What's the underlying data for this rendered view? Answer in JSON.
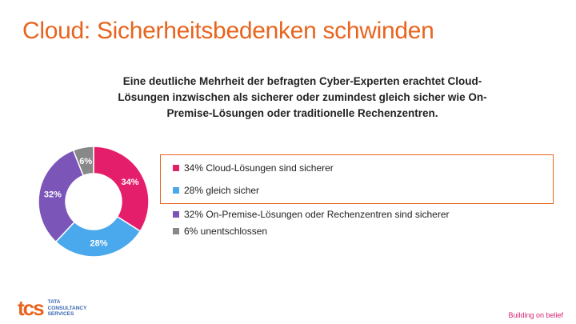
{
  "title": "Cloud: Sicherheitsbedenken schwinden",
  "subtitle": "Eine deutliche Mehrheit der befragten Cyber-Experten erachtet Cloud-Lösungen inzwischen als sicherer oder zumindest gleich sicher wie On-Premise-Lösungen oder traditionelle Rechenzentren.",
  "legend": [
    {
      "label": "34% Cloud-Lösungen sind sicherer",
      "color": "#e41e6a"
    },
    {
      "label": "28% gleich sicher",
      "color": "#4aa8ec"
    },
    {
      "label": "32% On-Premise-Lösungen oder Rechenzentren sind sicherer",
      "color": "#7b55b8"
    },
    {
      "label": "6% unentschlossen",
      "color": "#888888"
    }
  ],
  "chart_data": {
    "type": "pie",
    "variant": "donut",
    "categories": [
      "Cloud-Lösungen sind sicherer",
      "gleich sicher",
      "On-Premise-Lösungen oder Rechenzentren sind sicherer",
      "unentschlossen"
    ],
    "values": [
      34,
      28,
      32,
      6
    ],
    "data_labels": [
      "34%",
      "28%",
      "32%",
      "6%"
    ],
    "colors": [
      "#e41e6a",
      "#4aa8ec",
      "#7b55b8",
      "#888888"
    ],
    "start_angle_deg": 0,
    "direction": "clockwise"
  },
  "footer": {
    "logo_mark": "tcs",
    "logo_lines": [
      "TATA",
      "CONSULTANCY",
      "SERVICES"
    ],
    "tagline": "Building on belief"
  }
}
